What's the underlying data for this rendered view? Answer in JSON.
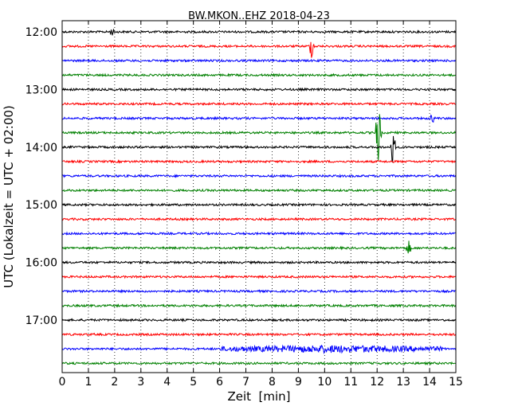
{
  "chart_data": {
    "type": "line",
    "title": "BW.MKON..EHZ 2018-04-23",
    "xlabel": "Zeit  [min]",
    "ylabel": "UTC (Lokalzeit = UTC + 02:00)",
    "xlim": [
      0,
      15
    ],
    "x_ticks": [
      0,
      1,
      2,
      3,
      4,
      5,
      6,
      7,
      8,
      9,
      10,
      11,
      12,
      13,
      14,
      15
    ],
    "y_tick_labels": [
      "12:00",
      "13:00",
      "14:00",
      "15:00",
      "16:00",
      "17:00"
    ],
    "grid": "vertical dotted at each minute",
    "trace_colors": [
      "#000000",
      "#ff0000",
      "#0000ff",
      "#008000"
    ],
    "traces": [
      {
        "start": "12:00",
        "color": "#000000",
        "events": [
          {
            "min": 1.9,
            "amp": 0.25
          }
        ]
      },
      {
        "start": "12:15",
        "color": "#ff0000",
        "events": [
          {
            "min": 9.5,
            "amp": 0.8
          }
        ]
      },
      {
        "start": "12:30",
        "color": "#0000ff",
        "events": []
      },
      {
        "start": "12:45",
        "color": "#008000",
        "events": []
      },
      {
        "start": "13:00",
        "color": "#000000",
        "events": []
      },
      {
        "start": "13:15",
        "color": "#ff0000",
        "events": []
      },
      {
        "start": "13:30",
        "color": "#0000ff",
        "events": [
          {
            "min": 14.1,
            "amp": 0.3
          }
        ]
      },
      {
        "start": "13:45",
        "color": "#008000",
        "events": [
          {
            "min": 12.05,
            "amp": 3.0
          }
        ]
      },
      {
        "start": "14:00",
        "color": "#000000",
        "events": [
          {
            "min": 12.6,
            "amp": 1.4
          }
        ]
      },
      {
        "start": "14:15",
        "color": "#ff0000",
        "events": []
      },
      {
        "start": "14:30",
        "color": "#0000ff",
        "events": []
      },
      {
        "start": "14:45",
        "color": "#008000",
        "events": []
      },
      {
        "start": "15:00",
        "color": "#000000",
        "events": []
      },
      {
        "start": "15:15",
        "color": "#ff0000",
        "events": []
      },
      {
        "start": "15:30",
        "color": "#0000ff",
        "events": []
      },
      {
        "start": "15:45",
        "color": "#008000",
        "events": [
          {
            "min": 13.2,
            "amp": 0.5
          }
        ]
      },
      {
        "start": "16:00",
        "color": "#000000",
        "events": []
      },
      {
        "start": "16:15",
        "color": "#ff0000",
        "events": []
      },
      {
        "start": "16:30",
        "color": "#0000ff",
        "events": []
      },
      {
        "start": "16:45",
        "color": "#008000",
        "events": []
      },
      {
        "start": "17:00",
        "color": "#000000",
        "events": []
      },
      {
        "start": "17:15",
        "color": "#ff0000",
        "events": []
      },
      {
        "start": "17:30",
        "color": "#0000ff",
        "events": [],
        "noise_burst": {
          "from": 6.0,
          "to": 14.5,
          "amp": 0.35
        }
      },
      {
        "start": "17:45",
        "color": "#008000",
        "events": []
      }
    ]
  }
}
